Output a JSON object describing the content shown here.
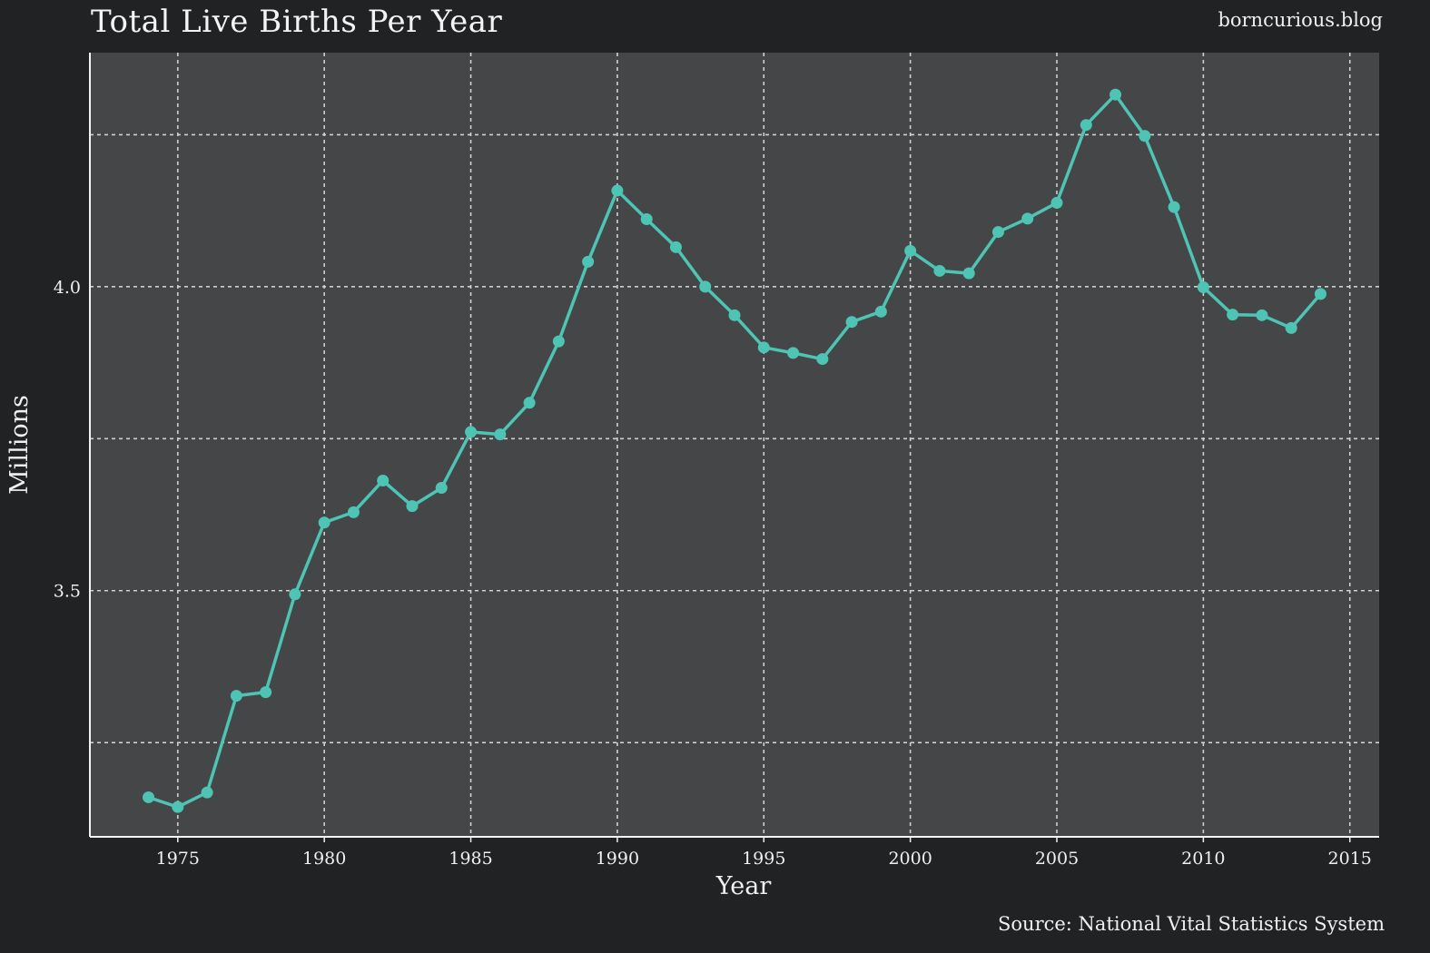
{
  "header": {
    "title": "Total Live Births Per Year",
    "site": "borncurious.blog"
  },
  "footer": {
    "source": "Source: National Vital Statistics System"
  },
  "colors": {
    "page_background": "#212224",
    "plot_background": "#454647",
    "series_line": "#4ec4b5",
    "grid": "#d0d0d0"
  },
  "chart_data": {
    "type": "line",
    "xlabel": "Year",
    "ylabel": "Millions",
    "xlim": [
      1972,
      2016
    ],
    "ylim": [
      3.095,
      4.385
    ],
    "x_ticks": [
      1975,
      1980,
      1985,
      1990,
      1995,
      2000,
      2005,
      2010,
      2015
    ],
    "y_ticks": [
      3.25,
      3.5,
      3.75,
      4.0,
      4.25
    ],
    "y_tick_labels": [
      "",
      "3.5",
      "",
      "4.0",
      ""
    ],
    "grid": true,
    "legend": false,
    "series": [
      {
        "x": [
          1974,
          1975,
          1976,
          1977,
          1978,
          1979,
          1980,
          1981,
          1982,
          1983,
          1984,
          1985,
          1986,
          1987,
          1988,
          1989,
          1990,
          1991,
          1992,
          1993,
          1994,
          1995,
          1996,
          1997,
          1998,
          1999,
          2000,
          2001,
          2002,
          2003,
          2004,
          2005,
          2006,
          2007,
          2008,
          2009,
          2010,
          2011,
          2012,
          2013,
          2014
        ],
        "values": [
          3.16,
          3.144,
          3.168,
          3.327,
          3.333,
          3.494,
          3.612,
          3.629,
          3.681,
          3.639,
          3.669,
          3.761,
          3.757,
          3.809,
          3.91,
          4.041,
          4.158,
          4.111,
          4.065,
          4.0,
          3.953,
          3.9,
          3.891,
          3.881,
          3.942,
          3.959,
          4.059,
          4.026,
          4.022,
          4.09,
          4.112,
          4.138,
          4.266,
          4.316,
          4.248,
          4.131,
          3.999,
          3.954,
          3.953,
          3.932,
          3.988
        ]
      }
    ]
  }
}
